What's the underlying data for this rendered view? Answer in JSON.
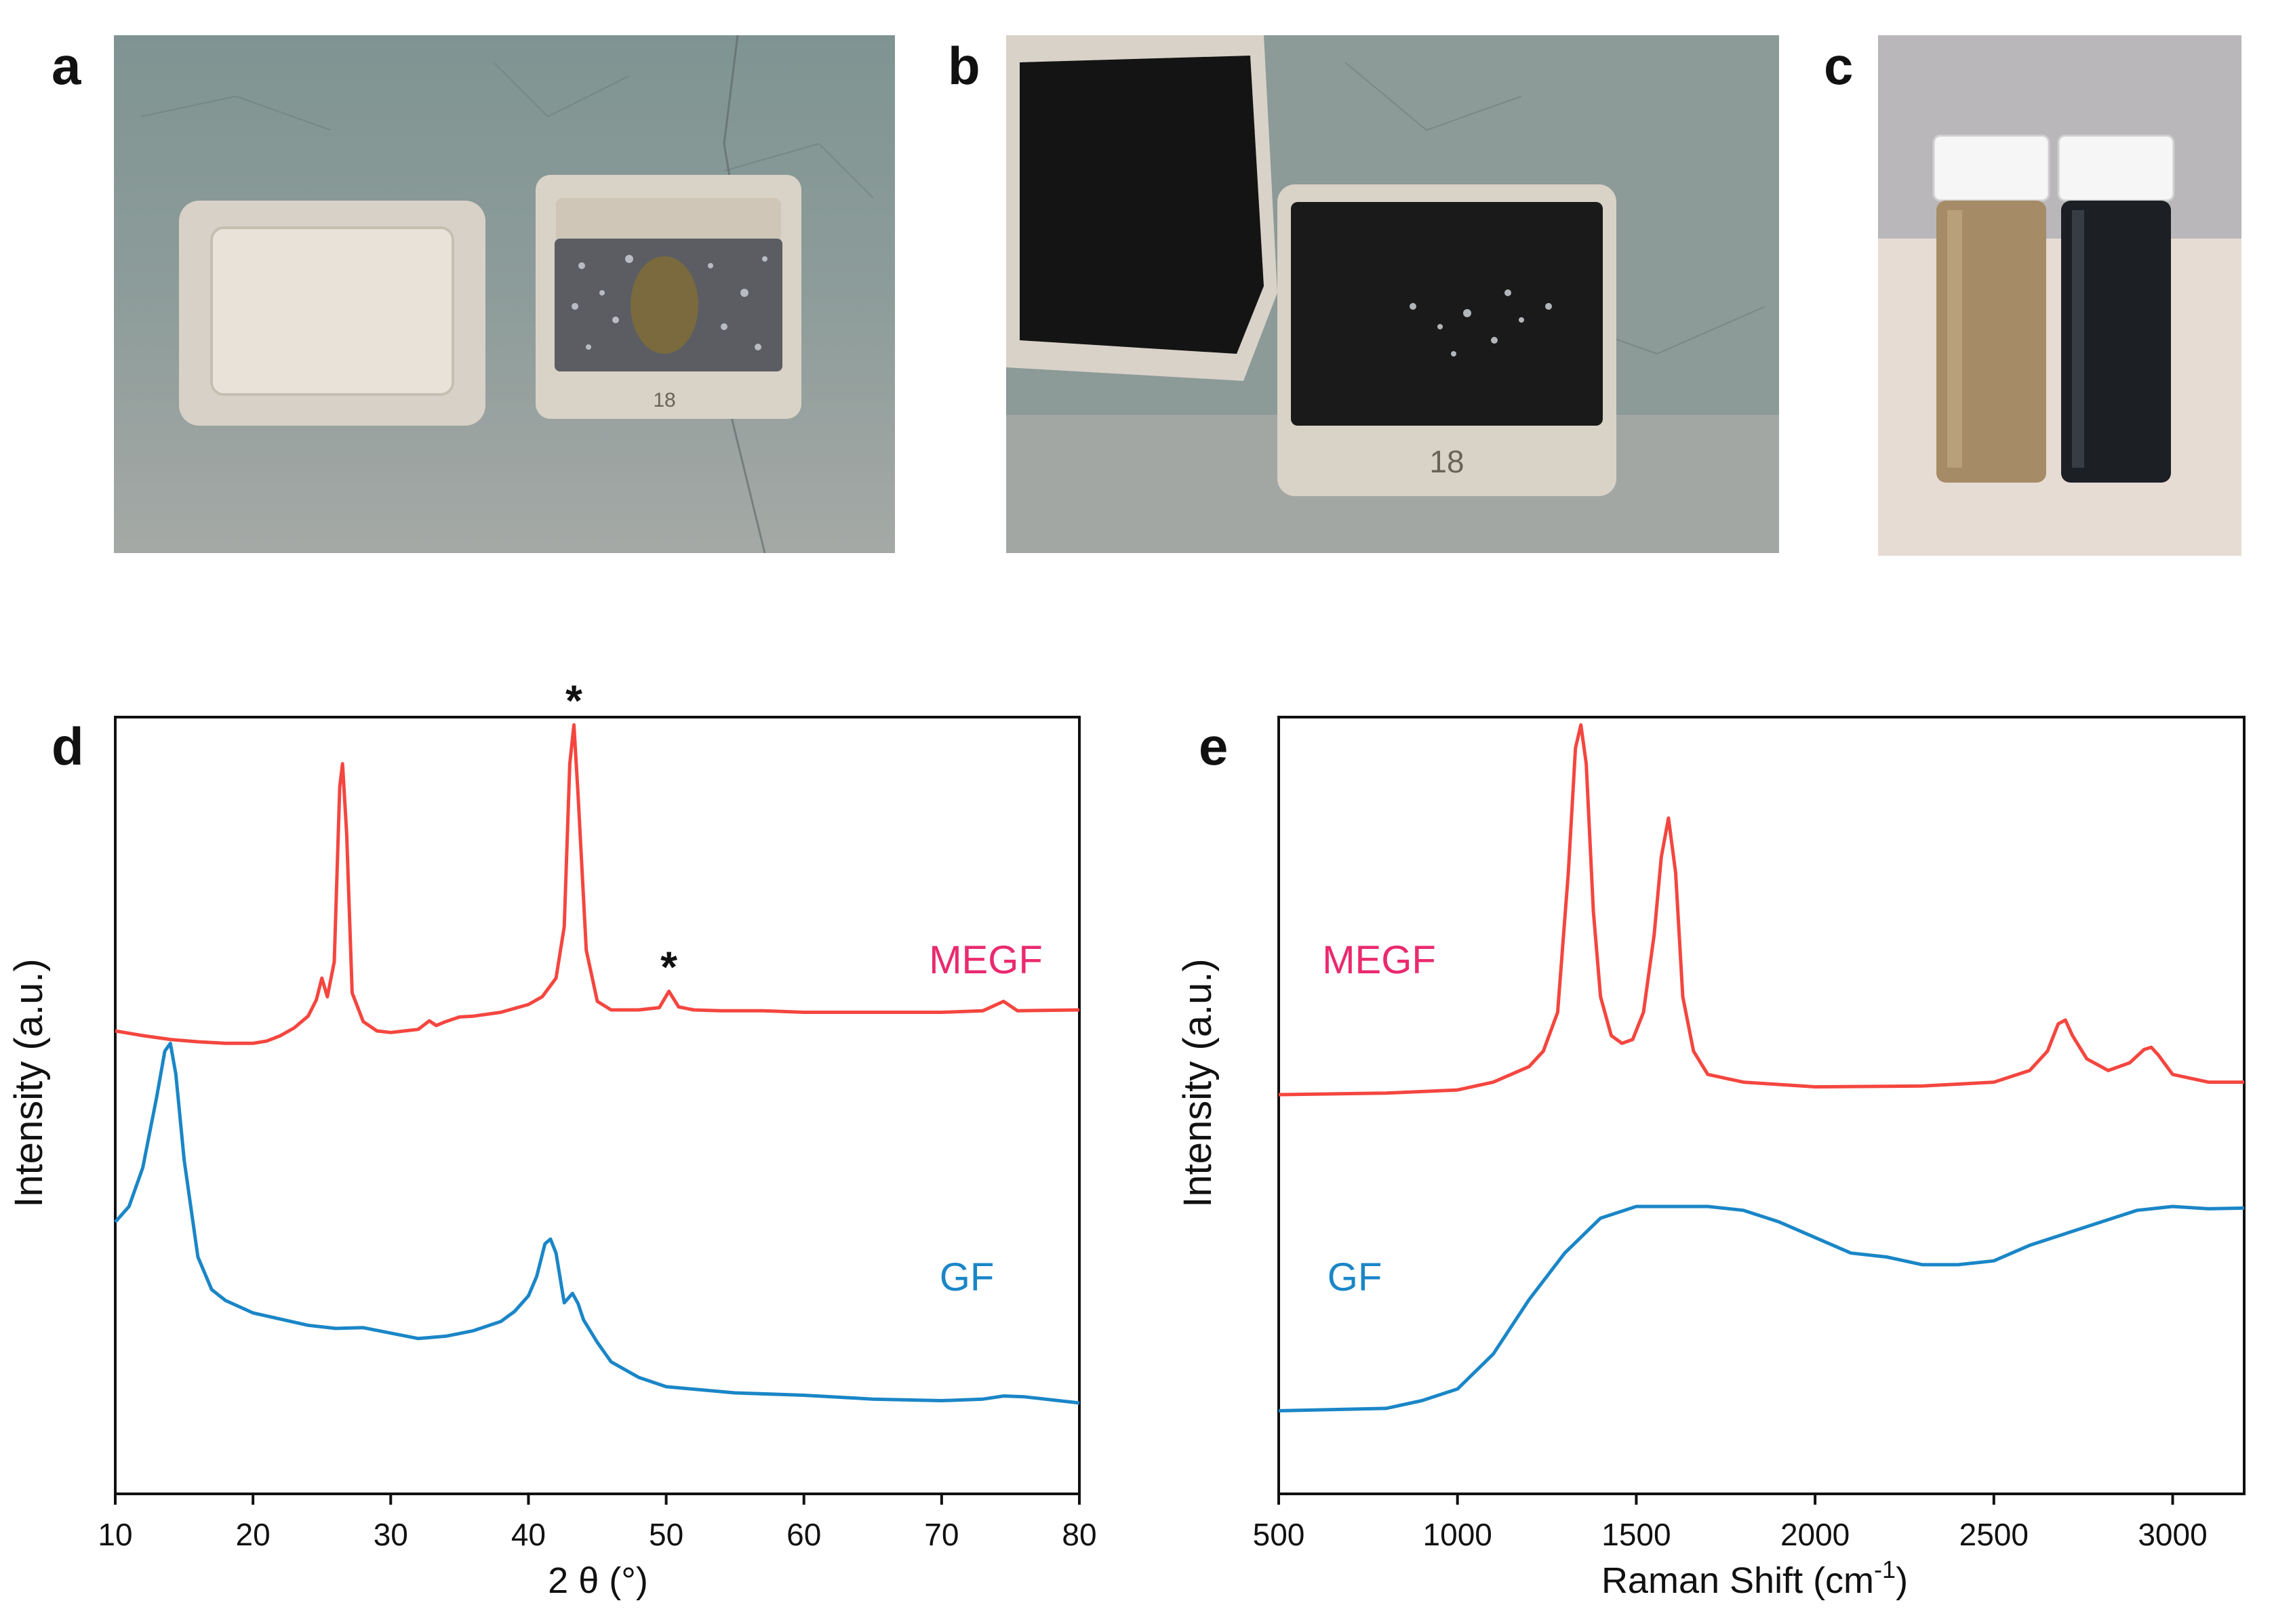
{
  "panels": {
    "a": "a",
    "b": "b",
    "c": "c",
    "d": "d",
    "e": "e"
  },
  "colors": {
    "megf_line": "#f4463f",
    "gf_line": "#1a86c7",
    "megf_label": "#ea2a6e",
    "gf_label": "#1a86c7",
    "axis": "#111111"
  },
  "photos": {
    "a": {
      "icon": "crucible-with-lid-photo-icon",
      "crucible_number": "18"
    },
    "b": {
      "icon": "blackened-crucible-photo-icon",
      "crucible_number": "18"
    },
    "c": {
      "icon": "two-vials-photo-icon"
    }
  },
  "chart_data": [
    {
      "panel": "d",
      "type": "line",
      "title": "",
      "xlabel": "2 θ (°)",
      "ylabel": "Intensity (a.u.)",
      "xlim": [
        10,
        80
      ],
      "ylim": [
        0,
        100
      ],
      "x_ticks": [
        10,
        20,
        30,
        40,
        50,
        60,
        70,
        80
      ],
      "y_ticks_shown": false,
      "grid": false,
      "series": [
        {
          "name": "MEGF",
          "x": [
            10,
            12,
            14,
            16,
            18,
            20,
            21,
            22,
            23,
            24,
            24.6,
            25,
            25.4,
            25.9,
            26.3,
            26.5,
            26.8,
            27.2,
            28,
            29,
            30,
            31,
            32,
            32.8,
            33.3,
            34,
            35,
            36,
            38,
            40,
            41,
            42,
            42.6,
            43,
            43.3,
            43.6,
            44.2,
            45,
            46,
            48,
            49.5,
            50.2,
            50.9,
            52,
            54,
            57,
            60,
            65,
            70,
            73,
            74.5,
            75.5,
            80
          ],
          "y": [
            59.6,
            59.0,
            58.5,
            58.2,
            58.0,
            58.0,
            58.3,
            59.0,
            60.0,
            61.5,
            63.6,
            66.4,
            64.0,
            68.5,
            91.0,
            94.0,
            85.0,
            64.5,
            60.8,
            59.6,
            59.4,
            59.6,
            59.8,
            60.9,
            60.3,
            60.8,
            61.4,
            61.5,
            62.0,
            63.0,
            64.0,
            66.4,
            73.0,
            94.0,
            99.0,
            90.0,
            70.0,
            63.4,
            62.3,
            62.3,
            62.6,
            64.7,
            62.7,
            62.3,
            62.2,
            62.2,
            62.0,
            62.0,
            62.0,
            62.2,
            63.4,
            62.2,
            62.3
          ]
        },
        {
          "name": "GF",
          "x": [
            10,
            11,
            12,
            13,
            13.6,
            14,
            14.4,
            15,
            16,
            17,
            18,
            20,
            22,
            24,
            26,
            28,
            30,
            32,
            34,
            36,
            38,
            39,
            40,
            40.6,
            41.2,
            41.6,
            42,
            42.6,
            43.2,
            43.6,
            44,
            45,
            46,
            48,
            50,
            55,
            60,
            65,
            70,
            73,
            74.5,
            76,
            80
          ],
          "y": [
            35.0,
            37.0,
            42.0,
            51.0,
            57.0,
            58.0,
            54.0,
            43.0,
            30.5,
            26.3,
            24.9,
            23.3,
            22.5,
            21.7,
            21.3,
            21.4,
            20.7,
            20.0,
            20.3,
            21.0,
            22.2,
            23.5,
            25.5,
            28.0,
            32.2,
            32.8,
            31.0,
            24.6,
            25.8,
            24.5,
            22.4,
            19.5,
            17.0,
            15.0,
            13.8,
            13.0,
            12.7,
            12.2,
            12.0,
            12.2,
            12.6,
            12.5,
            11.7
          ]
        }
      ],
      "series_labels": [
        {
          "text": "MEGF",
          "series": "MEGF"
        },
        {
          "text": "GF",
          "series": "GF"
        }
      ],
      "annotations": [
        {
          "text": "*",
          "x": 43.3,
          "note": "above peak"
        },
        {
          "text": "*",
          "x": 50.2,
          "note": "above peak"
        }
      ]
    },
    {
      "panel": "e",
      "type": "line",
      "title": "",
      "xlabel": "Raman Shift (cm⁻¹)",
      "xlabel_base": "Raman Shift (cm",
      "xlabel_sup": "-1",
      "xlabel_close": ")",
      "ylabel": "Intensity (a.u.)",
      "xlim": [
        500,
        3200
      ],
      "ylim": [
        0,
        100
      ],
      "x_ticks": [
        500,
        1000,
        1500,
        2000,
        2500,
        3000
      ],
      "y_ticks_shown": false,
      "grid": false,
      "series": [
        {
          "name": "MEGF",
          "x": [
            500,
            800,
            1000,
            1100,
            1200,
            1240,
            1280,
            1310,
            1330,
            1345,
            1360,
            1380,
            1400,
            1430,
            1460,
            1490,
            1520,
            1550,
            1570,
            1590,
            1610,
            1630,
            1660,
            1700,
            1800,
            2000,
            2300,
            2500,
            2600,
            2650,
            2680,
            2700,
            2720,
            2760,
            2820,
            2880,
            2920,
            2940,
            2960,
            3000,
            3100,
            3200
          ],
          "y": [
            51.4,
            51.6,
            52.0,
            53.0,
            55.0,
            57.0,
            62.0,
            80.0,
            96.0,
            99.0,
            94.0,
            75.0,
            64.0,
            59.0,
            58.0,
            58.5,
            62.0,
            72.0,
            82.0,
            87.0,
            80.0,
            64.0,
            57.0,
            54.0,
            53.0,
            52.4,
            52.5,
            53.0,
            54.5,
            57.0,
            60.5,
            61.0,
            59.0,
            56.0,
            54.5,
            55.5,
            57.2,
            57.5,
            56.5,
            54.0,
            53.0,
            53.0
          ]
        },
        {
          "name": "GF",
          "x": [
            500,
            800,
            900,
            1000,
            1100,
            1200,
            1300,
            1400,
            1500,
            1600,
            1700,
            1800,
            1900,
            2000,
            2100,
            2200,
            2300,
            2400,
            2500,
            2600,
            2700,
            2800,
            2900,
            3000,
            3100,
            3200
          ],
          "y": [
            10.7,
            11.0,
            12.0,
            13.5,
            18.0,
            25.0,
            31.0,
            35.5,
            37.0,
            37.0,
            37.0,
            36.5,
            35.0,
            33.0,
            31.0,
            30.5,
            29.5,
            29.5,
            30.0,
            32.0,
            33.5,
            35.0,
            36.5,
            37.0,
            36.7,
            36.8
          ]
        }
      ],
      "series_labels": [
        {
          "text": "MEGF",
          "series": "MEGF"
        },
        {
          "text": "GF",
          "series": "GF"
        }
      ]
    }
  ]
}
